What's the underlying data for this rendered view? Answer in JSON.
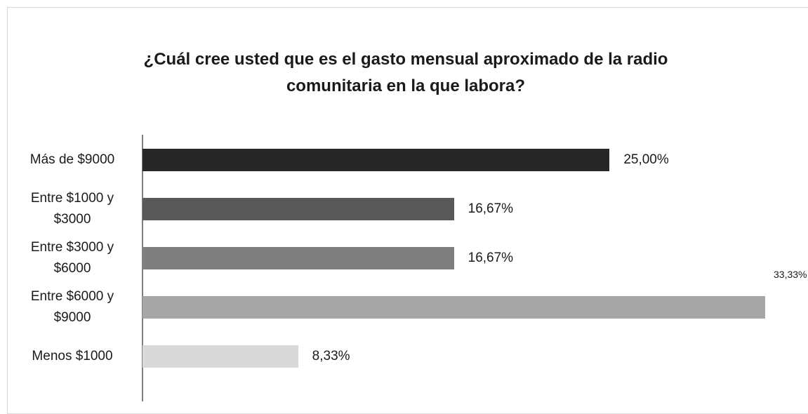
{
  "chart_data": {
    "type": "bar",
    "orientation": "horizontal",
    "title": "¿Cuál cree usted que es el gasto mensual aproximado de la radio comunitaria en la que labora?",
    "categories": [
      "Más de $9000",
      "Entre $1000 y $3000",
      "Entre $3000 y $6000",
      "Entre $6000 y $9000",
      "Menos $1000"
    ],
    "values": [
      25,
      16.67,
      16.67,
      33.33,
      8.33
    ],
    "value_labels": [
      "25,00%",
      "16,67%",
      "16,67%",
      "33,33%",
      "8,33%"
    ],
    "colors": [
      "#262626",
      "#595959",
      "#7f7f7f",
      "#a6a6a6",
      "#d9d9d9"
    ]
  }
}
